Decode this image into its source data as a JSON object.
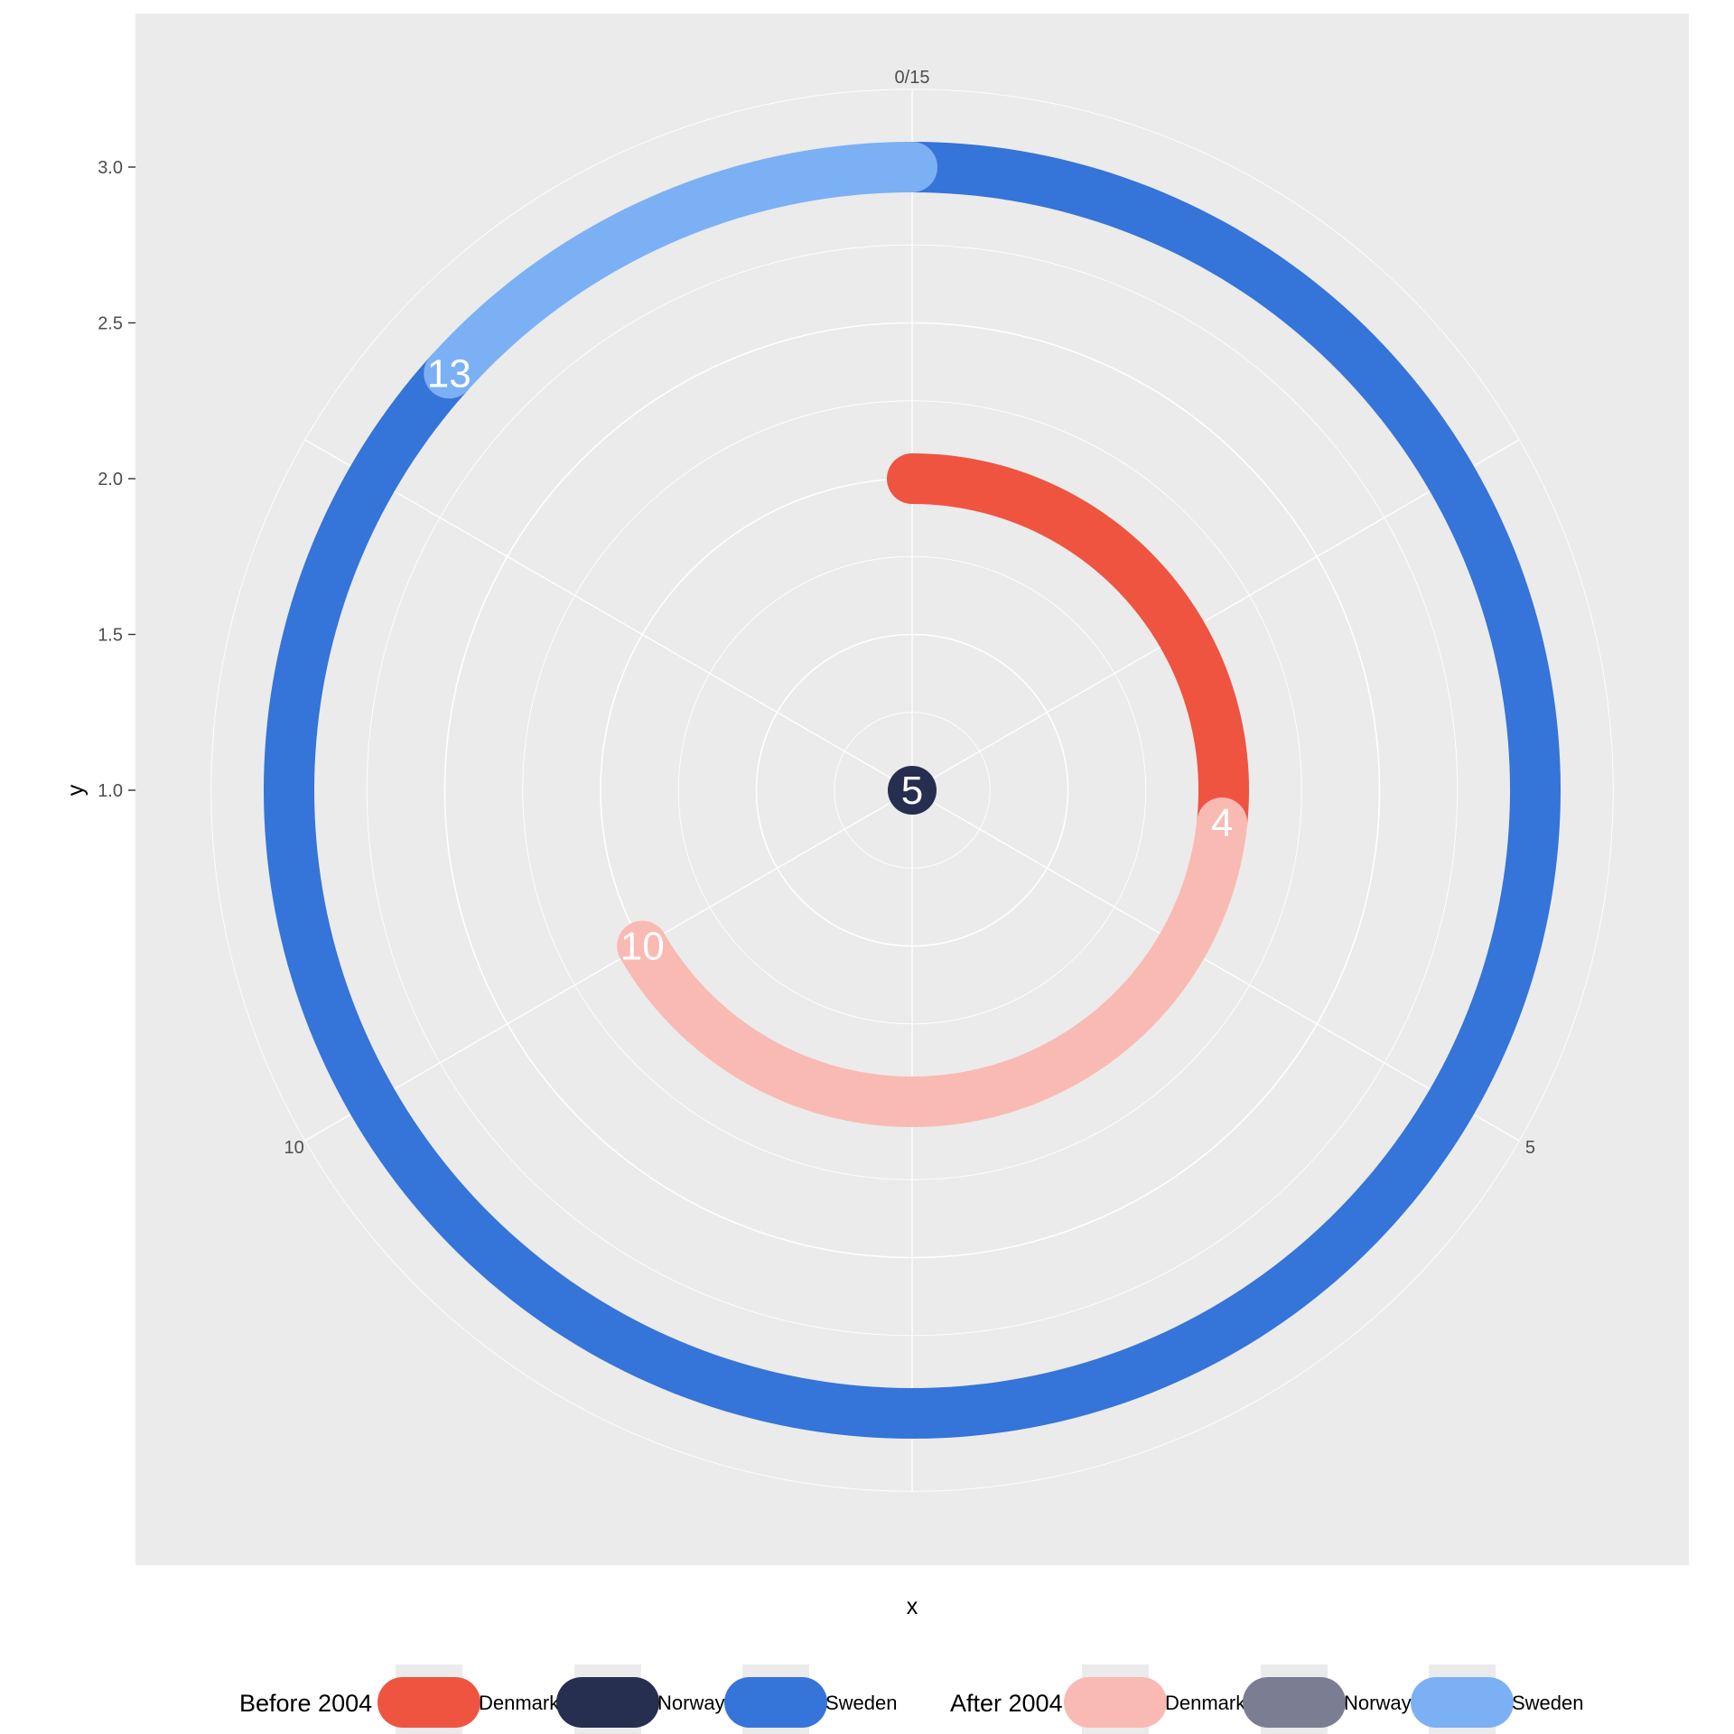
{
  "chart_data": {
    "type": "polar-line",
    "xlabel": "x",
    "ylabel": "y",
    "theta_period": 15,
    "theta_ticks": [
      {
        "value": 0,
        "label": "0/15"
      },
      {
        "value": 5,
        "label": "5"
      },
      {
        "value": 10,
        "label": "10"
      }
    ],
    "y_ticks": [
      {
        "value": 1.0,
        "label": "1.0"
      },
      {
        "value": 1.5,
        "label": "1.5"
      },
      {
        "value": 2.0,
        "label": "2.0"
      },
      {
        "value": 2.5,
        "label": "2.5"
      },
      {
        "value": 3.0,
        "label": "3.0"
      }
    ],
    "ylim": [
      1.0,
      3.0
    ],
    "grid": true,
    "segments": [
      {
        "country": "Denmark",
        "period": "Before 2004",
        "y": 2,
        "x_start": 0,
        "x_end": 4,
        "color": "#EF5441"
      },
      {
        "country": "Denmark",
        "period": "After 2004",
        "y": 2,
        "x_start": 4,
        "x_end": 10,
        "color": "#F9BAB3"
      },
      {
        "country": "Norway",
        "period": "Before 2004",
        "y": 1,
        "x_start": 0,
        "x_end": 5,
        "color": "#262F4F"
      },
      {
        "country": "Sweden",
        "period": "Before 2004",
        "y": 3,
        "x_start": 0,
        "x_end": 13,
        "color": "#3574D8"
      },
      {
        "country": "Sweden",
        "period": "After 2004",
        "y": 3,
        "x_start": 13,
        "x_end": 15,
        "color": "#7CB0F5"
      }
    ],
    "end_labels": [
      {
        "country": "Denmark",
        "y": 2,
        "x": 4,
        "text": "4"
      },
      {
        "country": "Denmark",
        "y": 2,
        "x": 10,
        "text": "10"
      },
      {
        "country": "Norway",
        "y": 1,
        "x": 5,
        "text": "5"
      },
      {
        "country": "Sweden",
        "y": 3,
        "x": 13,
        "text": "13"
      }
    ],
    "legend_position": "bottom",
    "legend": [
      {
        "title": "Before 2004",
        "entries": [
          {
            "label": "Denmark",
            "color": "#EF5441"
          },
          {
            "label": "Norway",
            "color": "#262F4F"
          },
          {
            "label": "Sweden",
            "color": "#3574D8"
          }
        ]
      },
      {
        "title": "After 2004",
        "entries": [
          {
            "label": "Denmark",
            "color": "#F9BAB3"
          },
          {
            "label": "Norway",
            "color": "#7B7E92"
          },
          {
            "label": "Sweden",
            "color": "#7CB0F5"
          }
        ]
      }
    ]
  }
}
